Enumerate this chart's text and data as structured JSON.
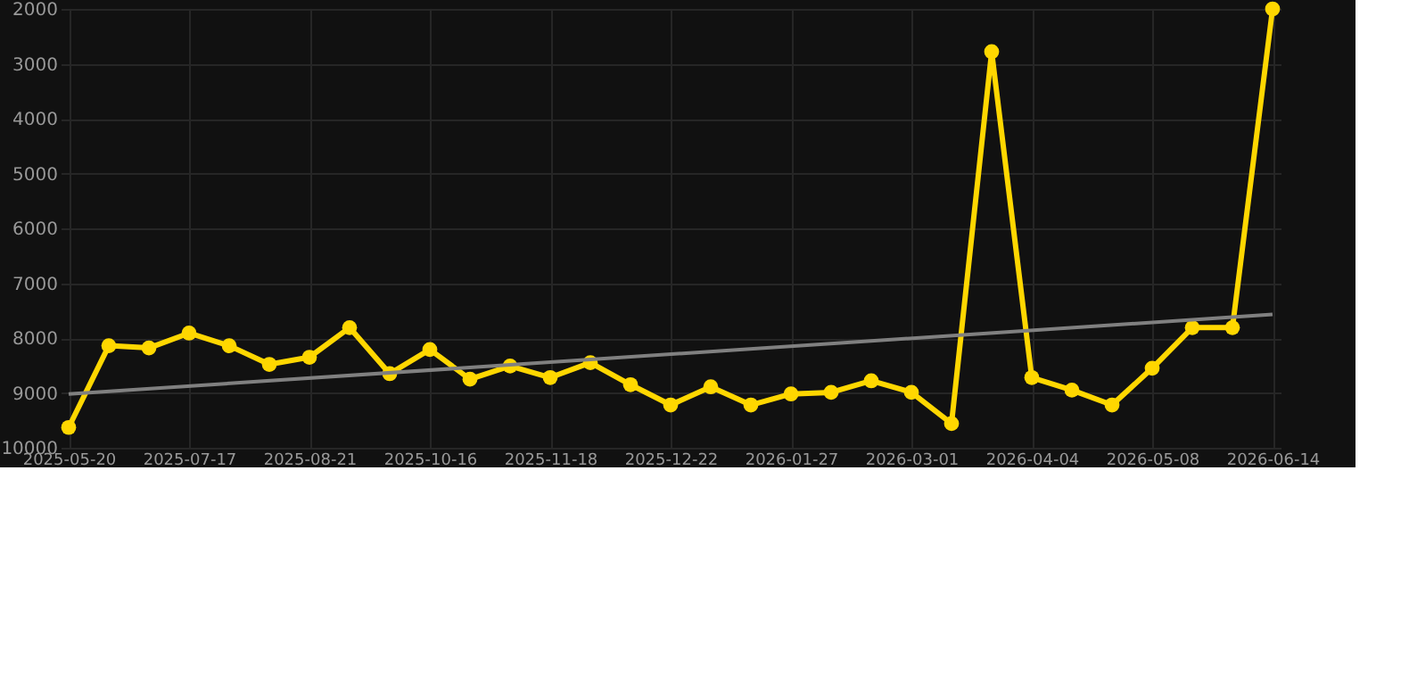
{
  "chart_data": {
    "type": "line",
    "categories": [
      "2025-05-20",
      null,
      null,
      "2025-07-17",
      null,
      null,
      "2025-08-21",
      null,
      null,
      "2025-10-16",
      null,
      null,
      "2025-11-18",
      null,
      null,
      "2025-12-22",
      null,
      null,
      "2026-01-27",
      null,
      null,
      "2026-03-01",
      null,
      null,
      "2026-04-04",
      null,
      null,
      "2026-05-08",
      null,
      null,
      "2026-06-14"
    ],
    "series": [
      {
        "color": "#ffd700",
        "marker": "circle",
        "values": [
          9630,
          8140,
          8180,
          7910,
          8140,
          8480,
          8350,
          7810,
          8650,
          8210,
          8750,
          8510,
          8720,
          8450,
          8850,
          9220,
          8890,
          9220,
          9020,
          8990,
          8780,
          8990,
          9560,
          2780,
          8720,
          8950,
          9220,
          8550,
          7810,
          7810,
          2000
        ]
      },
      {
        "type": "line",
        "color": "#808080",
        "marker": "none",
        "values": [
          9020,
          null,
          null,
          null,
          null,
          null,
          null,
          null,
          null,
          null,
          null,
          null,
          null,
          null,
          null,
          null,
          null,
          null,
          null,
          null,
          null,
          null,
          null,
          null,
          null,
          null,
          null,
          null,
          null,
          null,
          7570
        ]
      }
    ],
    "ylim": [
      10000,
      2000
    ],
    "yticks": [
      2000,
      3000,
      4000,
      5000,
      6000,
      7000,
      8000,
      9000,
      10000
    ],
    "grid": true
  }
}
